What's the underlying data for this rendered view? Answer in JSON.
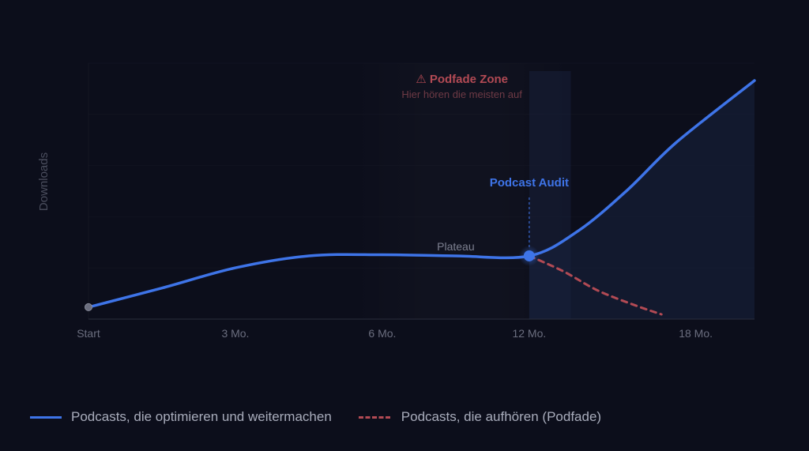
{
  "chart_data": {
    "type": "line",
    "ylabel": "Downloads",
    "xlabel": "",
    "x_ticks": [
      {
        "label": "Start",
        "month": 0
      },
      {
        "label": "3 Mo.",
        "month": 3
      },
      {
        "label": "6 Mo.",
        "month": 6
      },
      {
        "label": "12 Mo.",
        "month": 9
      },
      {
        "label": "18 Mo.",
        "month": 12.4
      }
    ],
    "xlim": [
      0,
      13.6
    ],
    "ylim": [
      0,
      100
    ],
    "grid": true,
    "series": [
      {
        "name": "Podcasts, die optimieren und weitermachen",
        "color": "#3e74e8",
        "style": "solid",
        "points": [
          [
            0,
            5
          ],
          [
            1.5,
            13
          ],
          [
            3,
            21.5
          ],
          [
            4.5,
            26.5
          ],
          [
            6,
            27
          ],
          [
            7.5,
            26.5
          ],
          [
            9,
            26.5
          ],
          [
            10,
            37
          ],
          [
            11,
            54
          ],
          [
            12,
            74
          ],
          [
            13.6,
            100
          ]
        ]
      },
      {
        "name": "Podcasts, die aufhören (Podfade)",
        "color": "#b24a54",
        "style": "dashed",
        "points": [
          [
            9,
            26.5
          ],
          [
            9.7,
            20
          ],
          [
            10.4,
            12
          ],
          [
            11.2,
            5.5
          ],
          [
            11.7,
            2
          ]
        ]
      }
    ],
    "annotations": {
      "zone_title": "⚠ Podfade Zone",
      "zone_subtitle": "Hier hören die meisten auf",
      "zone_range": [
        5.4,
        9.85
      ],
      "audit_label": "Podcast Audit",
      "audit_month": 9,
      "plateau_label": "Plateau"
    }
  },
  "colors": {
    "background": "#0c0e1b",
    "accent": "#3e74e8",
    "podfade": "#b24a54",
    "text_muted": "#6b6e7f"
  }
}
